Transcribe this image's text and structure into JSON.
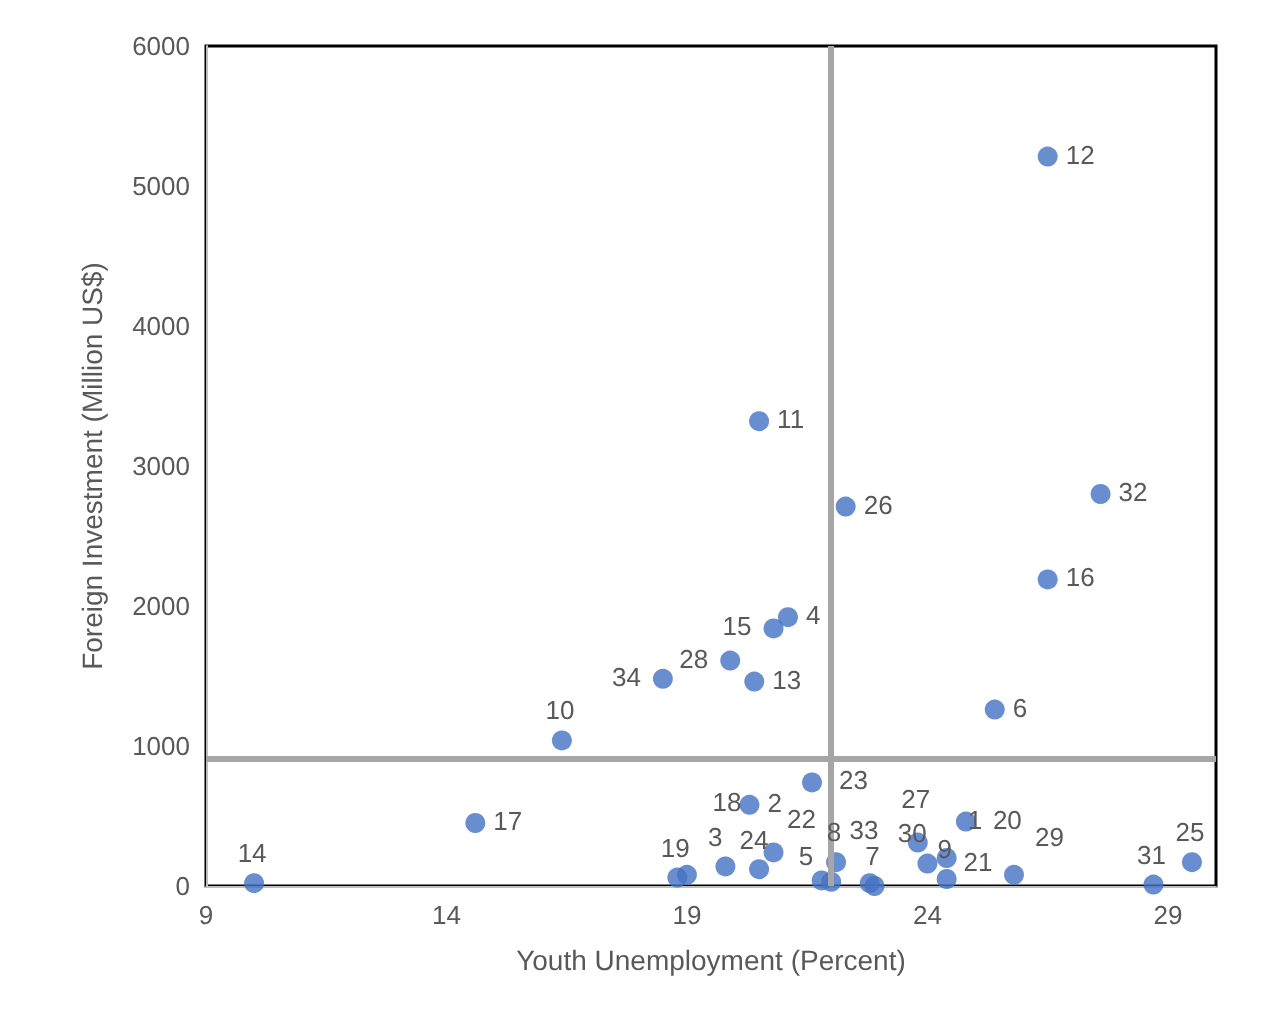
{
  "chart_data": {
    "type": "scatter",
    "xlabel": "Youth Unemployment (Percent)",
    "ylabel": "Foreign Investment (Million US$)",
    "xlim": [
      9,
      30
    ],
    "xticks": [
      9,
      14,
      19,
      24,
      29
    ],
    "ylim": [
      0,
      6000
    ],
    "yticks": [
      0,
      1000,
      2000,
      3000,
      4000,
      5000,
      6000
    ],
    "grid": false,
    "legend": false,
    "marker": "circle",
    "ref_lines": [
      {
        "axis": "x",
        "value": 22,
        "color": "#a6a6a6"
      },
      {
        "axis": "y",
        "value": 910,
        "color": "#a6a6a6"
      }
    ],
    "series": [
      {
        "color": "#4472c4",
        "x": [
          10.0,
          14.6,
          20.3,
          21.6,
          18.8,
          19.0,
          19.8,
          20.5,
          20.8,
          21.8,
          22.0,
          22.1,
          22.8,
          22.9,
          23.8,
          24.0,
          24.4,
          24.4,
          24.8,
          25.8,
          28.7,
          29.5,
          20.5,
          22.3,
          27.6,
          26.5,
          20.8,
          21.1,
          19.9,
          18.5,
          20.4,
          16.4,
          25.4,
          26.5
        ],
        "values": [
          20,
          450,
          580,
          740,
          60,
          80,
          140,
          120,
          240,
          40,
          30,
          170,
          20,
          0,
          310,
          160,
          200,
          50,
          460,
          80,
          10,
          170,
          3320,
          2710,
          2800,
          2190,
          1840,
          1920,
          1610,
          1480,
          1460,
          1040,
          1260,
          5210
        ]
      }
    ],
    "annotations": [
      {
        "text": "14",
        "x": 10.0,
        "y": 20
      },
      {
        "text": "17",
        "x": 14.6,
        "y": 450
      },
      {
        "text": "2",
        "x": 20.3,
        "y": 580
      },
      {
        "text": "23",
        "x": 21.6,
        "y": 740
      },
      {
        "text": "19",
        "x": 18.8,
        "y": 60
      },
      {
        "text": "3",
        "x": 19.0,
        "y": 80
      },
      {
        "text": "24",
        "x": 19.8,
        "y": 140
      },
      {
        "text": "22",
        "x": 20.5,
        "y": 120
      },
      {
        "text": "18",
        "x": 20.8,
        "y": 240
      },
      {
        "text": "33",
        "x": 21.8,
        "y": 40
      },
      {
        "text": "5",
        "x": 22.0,
        "y": 30
      },
      {
        "text": "8",
        "x": 22.1,
        "y": 170
      },
      {
        "text": "30",
        "x": 22.8,
        "y": 20
      },
      {
        "text": "7",
        "x": 22.9,
        "y": 0
      },
      {
        "text": "27",
        "x": 23.8,
        "y": 310
      },
      {
        "text": "21",
        "x": 24.0,
        "y": 160
      },
      {
        "text": "1",
        "x": 24.4,
        "y": 200
      },
      {
        "text": "9",
        "x": 24.4,
        "y": 50
      },
      {
        "text": "20",
        "x": 24.8,
        "y": 460
      },
      {
        "text": "29",
        "x": 25.8,
        "y": 80
      },
      {
        "text": "31",
        "x": 28.7,
        "y": 10
      },
      {
        "text": "25",
        "x": 29.5,
        "y": 170
      },
      {
        "text": "11",
        "x": 20.5,
        "y": 3320
      },
      {
        "text": "26",
        "x": 22.3,
        "y": 2710
      },
      {
        "text": "32",
        "x": 27.6,
        "y": 2800
      },
      {
        "text": "16",
        "x": 26.5,
        "y": 2190
      },
      {
        "text": "15",
        "x": 20.8,
        "y": 1840
      },
      {
        "text": "4",
        "x": 21.1,
        "y": 1920
      },
      {
        "text": "28",
        "x": 19.9,
        "y": 1610
      },
      {
        "text": "34",
        "x": 18.5,
        "y": 1480
      },
      {
        "text": "13",
        "x": 20.4,
        "y": 1460
      },
      {
        "text": "10",
        "x": 16.4,
        "y": 1040
      },
      {
        "text": "6",
        "x": 25.4,
        "y": 1260
      },
      {
        "text": "12",
        "x": 26.5,
        "y": 5210
      }
    ]
  }
}
